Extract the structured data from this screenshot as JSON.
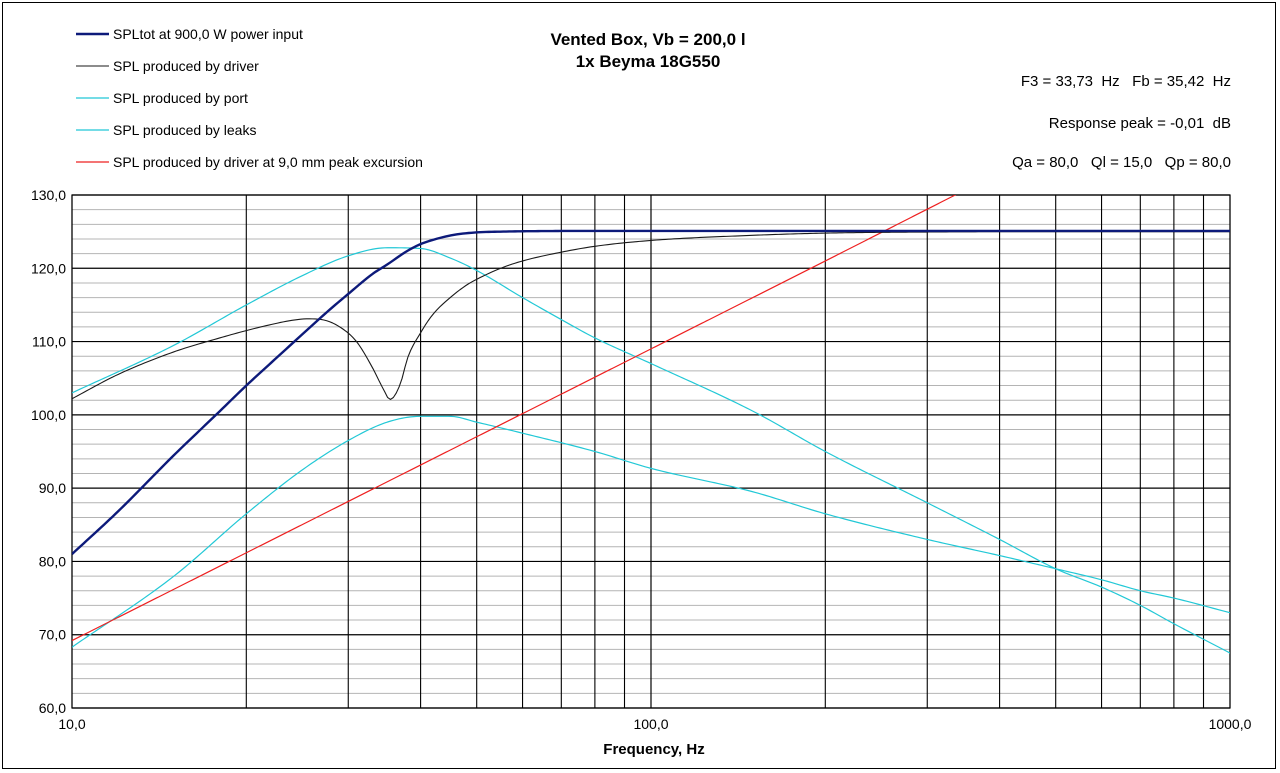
{
  "chart_data": {
    "type": "line",
    "title": "Vented Box, Vb = 200,0 l",
    "subtitle": "1x Beyma 18G550",
    "xlabel": "Frequency, Hz",
    "ylabel": "",
    "x_scale": "log",
    "xlim": [
      10,
      1000
    ],
    "ylim": [
      60,
      130
    ],
    "x_tick_labels": [
      {
        "value": 10,
        "label": "10,0"
      },
      {
        "value": 100,
        "label": "100,0"
      },
      {
        "value": 1000,
        "label": "1000,0"
      }
    ],
    "y_tick_labels": [
      {
        "value": 60,
        "label": "60,0"
      },
      {
        "value": 70,
        "label": "70,0"
      },
      {
        "value": 80,
        "label": "80,0"
      },
      {
        "value": 90,
        "label": "90,0"
      },
      {
        "value": 100,
        "label": "100,0"
      },
      {
        "value": 110,
        "label": "110,0"
      },
      {
        "value": 120,
        "label": "120,0"
      },
      {
        "value": 130,
        "label": "130,0"
      }
    ],
    "grid": true,
    "legend_position": "top-left",
    "annotations": [
      "F3 = 33,73  Hz   Fb = 35,42  Hz",
      "Response peak = -0,01  dB",
      "Qa = 80,0   Ql = 15,0   Qp = 80,0"
    ],
    "series": [
      {
        "name": "SPL produced by port",
        "color": "#22c8d6",
        "width": 1.2,
        "points": [
          [
            10,
            103
          ],
          [
            15,
            109.5
          ],
          [
            20,
            115
          ],
          [
            25,
            119
          ],
          [
            30,
            121.7
          ],
          [
            35,
            122.8
          ],
          [
            40,
            122.7
          ],
          [
            45,
            121.4
          ],
          [
            50,
            119.7
          ],
          [
            60,
            116
          ],
          [
            70,
            113
          ],
          [
            80,
            110.5
          ],
          [
            100,
            107
          ],
          [
            150,
            100.5
          ],
          [
            200,
            95
          ],
          [
            300,
            88
          ],
          [
            400,
            83
          ],
          [
            500,
            79
          ],
          [
            600,
            76.5
          ],
          [
            700,
            74
          ],
          [
            800,
            71.5
          ],
          [
            1000,
            67.5
          ]
        ]
      },
      {
        "name": "SPL produced by leaks",
        "color": "#22c8d6",
        "width": 1.2,
        "points": [
          [
            10,
            68.3
          ],
          [
            15,
            78
          ],
          [
            20,
            86.5
          ],
          [
            25,
            92.5
          ],
          [
            30,
            96.5
          ],
          [
            35,
            99
          ],
          [
            40,
            99.8
          ],
          [
            45,
            99.8
          ],
          [
            50,
            99
          ],
          [
            60,
            97.5
          ],
          [
            80,
            95
          ],
          [
            100,
            92.7
          ],
          [
            150,
            89.5
          ],
          [
            200,
            86.5
          ],
          [
            300,
            83
          ],
          [
            400,
            80.8
          ],
          [
            500,
            79
          ],
          [
            600,
            77.5
          ],
          [
            700,
            76
          ],
          [
            800,
            75
          ],
          [
            1000,
            73
          ]
        ]
      },
      {
        "name": "SPL produced by driver at 9,0 mm peak excursion",
        "color": "#ee2020",
        "width": 1.2,
        "points": [
          [
            10,
            69.2
          ],
          [
            100,
            109
          ],
          [
            200,
            121
          ],
          [
            345,
            130.5
          ]
        ]
      },
      {
        "name": "SPL produced by driver",
        "color": "#1a1a1a",
        "width": 1.1,
        "points": [
          [
            10,
            102.2
          ],
          [
            12,
            105.5
          ],
          [
            15,
            108.6
          ],
          [
            18,
            110.5
          ],
          [
            20,
            111.5
          ],
          [
            22,
            112.3
          ],
          [
            24,
            112.9
          ],
          [
            25.5,
            113.1
          ],
          [
            27,
            113
          ],
          [
            29,
            112
          ],
          [
            31,
            110
          ],
          [
            33,
            106.5
          ],
          [
            34.5,
            103.5
          ],
          [
            35.4,
            102.1
          ],
          [
            36,
            102.5
          ],
          [
            37,
            104.5
          ],
          [
            38,
            107.8
          ],
          [
            40,
            111.2
          ],
          [
            42,
            113.7
          ],
          [
            45,
            116
          ],
          [
            48,
            117.7
          ],
          [
            50,
            118.5
          ],
          [
            55,
            120
          ],
          [
            60,
            121
          ],
          [
            70,
            122.2
          ],
          [
            80,
            123
          ],
          [
            100,
            123.8
          ],
          [
            150,
            124.5
          ],
          [
            200,
            124.8
          ],
          [
            300,
            124.95
          ],
          [
            500,
            125
          ],
          [
            1000,
            125
          ]
        ]
      },
      {
        "name": "SPLtot at 900,0 W power input",
        "color": "#0d1a7a",
        "width": 2.4,
        "points": [
          [
            10,
            81
          ],
          [
            12,
            86.8
          ],
          [
            15,
            94.5
          ],
          [
            18,
            100.5
          ],
          [
            20,
            104
          ],
          [
            22,
            107
          ],
          [
            25,
            111
          ],
          [
            28,
            114.5
          ],
          [
            30,
            116.5
          ],
          [
            33,
            119.2
          ],
          [
            35,
            120.5
          ],
          [
            38,
            122.4
          ],
          [
            40,
            123.3
          ],
          [
            43,
            124.1
          ],
          [
            46,
            124.6
          ],
          [
            50,
            124.9
          ],
          [
            55,
            125
          ],
          [
            60,
            125.05
          ],
          [
            80,
            125.1
          ],
          [
            100,
            125.1
          ],
          [
            1000,
            125.1
          ]
        ]
      }
    ],
    "legend": [
      {
        "name": "SPLtot at 900,0 W power input",
        "color": "#0d1a7a",
        "width": 2.4
      },
      {
        "name": "SPL produced by driver",
        "color": "#1a1a1a",
        "width": 1.1
      },
      {
        "name": "SPL produced by port",
        "color": "#22c8d6",
        "width": 1.2
      },
      {
        "name": "SPL produced by leaks",
        "color": "#22c8d6",
        "width": 1.2
      },
      {
        "name": "SPL produced by driver at 9,0 mm peak excursion",
        "color": "#ee2020",
        "width": 1.2
      }
    ]
  }
}
